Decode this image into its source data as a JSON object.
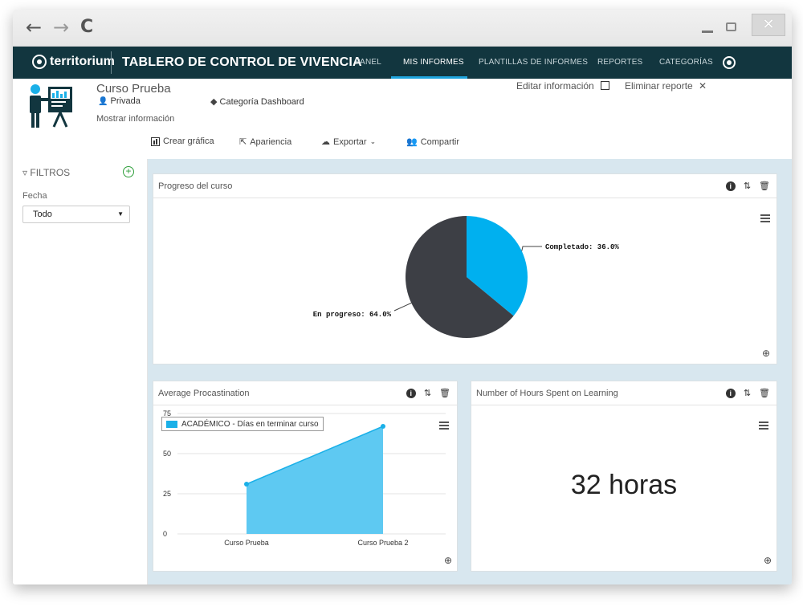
{
  "browser": {
    "back": "←",
    "forward": "→",
    "reload": "C",
    "close": "✕"
  },
  "topbar": {
    "brand": "territorium",
    "title": "TABLERO DE CONTROL DE VIVENCIA",
    "nav": [
      "PANEL",
      "MIS INFORMES",
      "PLANTILLAS DE INFORMES",
      "REPORTES",
      "CATEGORÍAS"
    ],
    "active_nav": "MIS INFORMES"
  },
  "header": {
    "course_title": "Curso Prueba",
    "privacy": "Privada",
    "category": "Categoría Dashboard",
    "show_info": "Mostrar información",
    "edit_info": "Editar información",
    "delete_report": "Eliminar reporte",
    "actions": [
      "Crear gráfica",
      "Apariencia",
      "Exportar",
      "Compartir"
    ]
  },
  "sidebar": {
    "filters_label": "FILTROS",
    "fecha_label": "Fecha",
    "fecha_value": "Todo"
  },
  "cards": {
    "progress": {
      "title": "Progreso del curso",
      "labels": [
        "Completado: 36.0%",
        "En progreso: 64.0%"
      ]
    },
    "procrastination": {
      "title": "Average Procastination",
      "legend": "ACADÉMICO - Días en terminar curso"
    },
    "hours": {
      "title": "Number of Hours Spent on Learning",
      "value": "32 horas"
    }
  },
  "colors": {
    "accent": "#1ab0e8",
    "dark_slice": "#3d3f45",
    "topbar": "#12363f"
  },
  "chart_data": [
    {
      "type": "pie",
      "title": "Progreso del curso",
      "categories": [
        "Completado",
        "En progreso"
      ],
      "values": [
        36.0,
        64.0
      ],
      "colors": [
        "#00b0ef",
        "#3d3f45"
      ]
    },
    {
      "type": "area",
      "title": "Average Procastination",
      "categories": [
        "Curso Prueba",
        "Curso Prueba 2"
      ],
      "series": [
        {
          "name": "ACADÉMICO - Días en terminar curso",
          "values": [
            31,
            67
          ]
        }
      ],
      "yticks": [
        0,
        25,
        50,
        75
      ],
      "ylim": [
        0,
        75
      ]
    }
  ]
}
